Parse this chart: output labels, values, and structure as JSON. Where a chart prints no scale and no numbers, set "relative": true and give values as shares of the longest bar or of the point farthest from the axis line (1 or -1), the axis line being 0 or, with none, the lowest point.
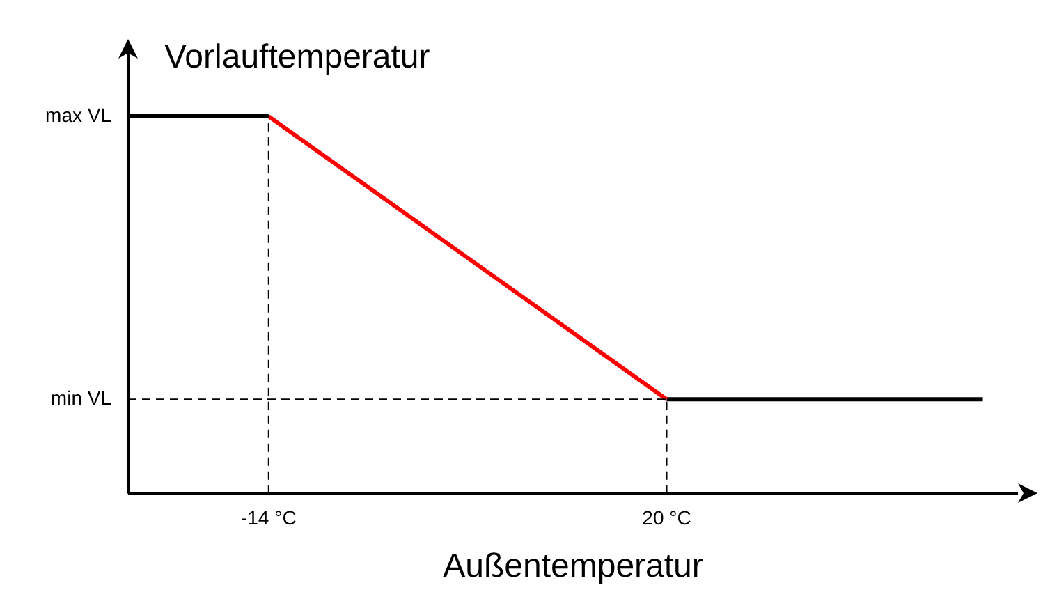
{
  "chart_data": {
    "type": "line",
    "ylabel": "Vorlauftemperatur",
    "xlabel": "Außentemperatur",
    "relative": true,
    "xlim": [
      -26,
      50
    ],
    "xticks": [
      {
        "value": -14,
        "label": "-14 °C"
      },
      {
        "value": 20,
        "label": "20 °C"
      }
    ],
    "series": [
      {
        "color": "#000000",
        "x": [
          -26,
          -14
        ],
        "values": [
          1,
          1
        ]
      },
      {
        "color": "#ff0000",
        "x": [
          -14,
          20
        ],
        "values": [
          1,
          0.25
        ]
      },
      {
        "color": "#000000",
        "x": [
          20,
          47
        ],
        "values": [
          0.25,
          0.25
        ]
      }
    ],
    "annotations": [
      {
        "text": "max VL",
        "x": -26,
        "y": 1
      }
    ],
    "ref_lines": [
      {
        "axis": "x",
        "value": -14,
        "line_style": "dashed"
      },
      {
        "axis": "x",
        "value": 20,
        "line_style": "dashed"
      },
      {
        "axis": "y",
        "value": 0.25,
        "line_style": "dashed",
        "label": "min VL"
      }
    ],
    "grid": false,
    "legend": false,
    "marker": "none",
    "line_style": "solid"
  }
}
